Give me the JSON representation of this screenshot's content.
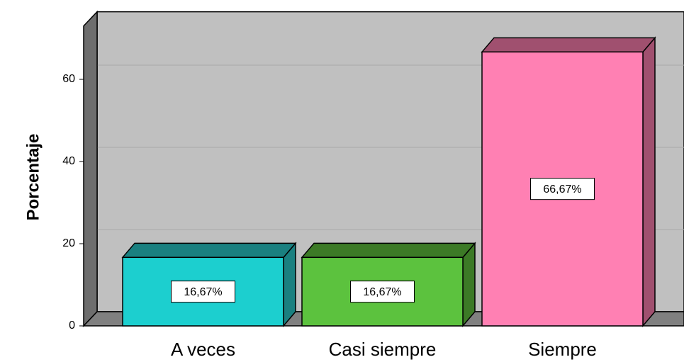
{
  "chart_data": {
    "type": "bar3d",
    "y_label": "Porcentaje",
    "categories": [
      "A veces",
      "Casi siempre",
      "Siempre"
    ],
    "values": [
      16.67,
      16.67,
      66.67
    ],
    "value_labels": [
      "16,67%",
      "16,67%",
      "66,67%"
    ],
    "colors": [
      "#1ccfcf",
      "#5cc23e",
      "#ff80b3"
    ],
    "side_colors": [
      "#1a8080",
      "#3c7a26",
      "#a0506f"
    ],
    "ylim": [
      0,
      73
    ],
    "yticks": [
      0,
      20,
      40,
      60
    ],
    "grid": true
  }
}
